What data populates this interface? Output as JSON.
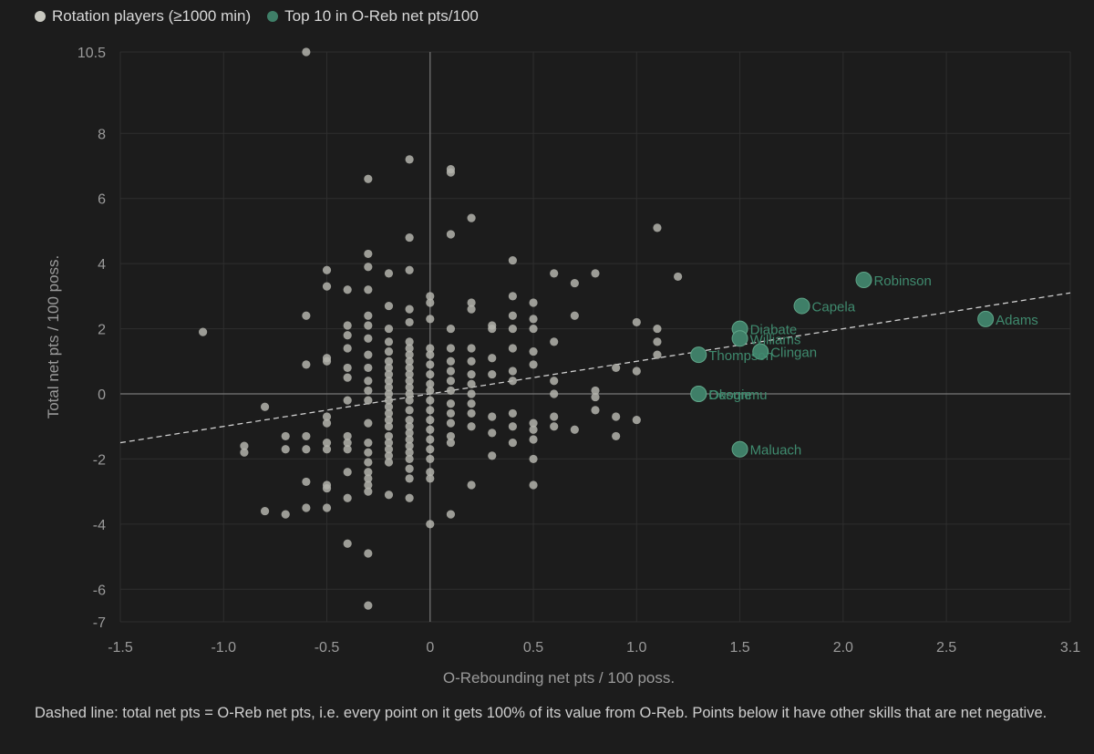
{
  "legend": {
    "rotation_label": "Rotation players (≥1000 min)",
    "top_label": "Top 10 in O-Reb net pts/100"
  },
  "caption": "Dashed line: total net pts = O-Reb net pts, i.e. every point on it gets 100% of its value from O-Reb. Points below it have other skills that are net negative.",
  "colors": {
    "background": "#1c1c1c",
    "rotation": "#b3b3ab",
    "top": "#3f7f68",
    "top_label": "#3f8a6e",
    "grid": "#2e2e2e",
    "axis_zero": "#777777"
  },
  "chart_data": {
    "type": "scatter",
    "xlabel": "O-Rebounding net pts / 100 poss.",
    "ylabel": "Total net pts / 100 poss.",
    "xlim": [
      -1.5,
      3.1
    ],
    "ylim": [
      -7,
      10.5
    ],
    "x_ticks": [
      -1.5,
      -1.0,
      -0.5,
      0,
      0.5,
      1.0,
      1.5,
      2.0,
      2.5,
      3.1
    ],
    "x_tick_labels": [
      "-1.5",
      "-1.0",
      "-0.5",
      "0",
      "0.5",
      "1.0",
      "1.5",
      "2.0",
      "2.5",
      "3.1"
    ],
    "y_ticks": [
      -7,
      -6,
      -4,
      -2,
      0,
      2,
      4,
      6,
      8,
      10.5
    ],
    "y_tick_labels": [
      "-7",
      "-6",
      "-4",
      "-2",
      "0",
      "2",
      "4",
      "6",
      "8",
      "10.5"
    ],
    "grid": true,
    "reference_line": {
      "style": "dashed",
      "from": [
        -1.5,
        -1.5
      ],
      "to": [
        3.1,
        3.1
      ]
    },
    "series": [
      {
        "name": "Rotation players (≥1000 min)",
        "points": [
          [
            -1.1,
            1.9
          ],
          [
            -0.9,
            -1.6
          ],
          [
            -0.9,
            -1.8
          ],
          [
            -0.8,
            -0.4
          ],
          [
            -0.8,
            -3.6
          ],
          [
            -0.7,
            -1.3
          ],
          [
            -0.7,
            -1.7
          ],
          [
            -0.7,
            -3.7
          ],
          [
            -0.6,
            10.5
          ],
          [
            -0.6,
            2.4
          ],
          [
            -0.6,
            0.9
          ],
          [
            -0.6,
            -1.3
          ],
          [
            -0.6,
            -1.7
          ],
          [
            -0.6,
            -2.7
          ],
          [
            -0.6,
            -3.5
          ],
          [
            -0.5,
            3.8
          ],
          [
            -0.5,
            3.3
          ],
          [
            -0.5,
            1.1
          ],
          [
            -0.5,
            1.0
          ],
          [
            -0.5,
            -0.7
          ],
          [
            -0.5,
            -0.9
          ],
          [
            -0.5,
            -1.5
          ],
          [
            -0.5,
            -1.7
          ],
          [
            -0.5,
            -2.8
          ],
          [
            -0.5,
            -2.9
          ],
          [
            -0.5,
            -3.5
          ],
          [
            -0.4,
            3.2
          ],
          [
            -0.4,
            2.1
          ],
          [
            -0.4,
            1.8
          ],
          [
            -0.4,
            1.4
          ],
          [
            -0.4,
            0.8
          ],
          [
            -0.4,
            0.5
          ],
          [
            -0.4,
            -0.2
          ],
          [
            -0.4,
            -1.3
          ],
          [
            -0.4,
            -1.5
          ],
          [
            -0.4,
            -1.7
          ],
          [
            -0.4,
            -2.4
          ],
          [
            -0.4,
            -3.2
          ],
          [
            -0.4,
            -4.6
          ],
          [
            -0.3,
            6.6
          ],
          [
            -0.3,
            4.3
          ],
          [
            -0.3,
            3.9
          ],
          [
            -0.3,
            3.2
          ],
          [
            -0.3,
            2.4
          ],
          [
            -0.3,
            2.1
          ],
          [
            -0.3,
            1.7
          ],
          [
            -0.3,
            1.2
          ],
          [
            -0.3,
            0.8
          ],
          [
            -0.3,
            0.4
          ],
          [
            -0.3,
            0.1
          ],
          [
            -0.3,
            -0.2
          ],
          [
            -0.3,
            -0.9
          ],
          [
            -0.3,
            -1.5
          ],
          [
            -0.3,
            -1.8
          ],
          [
            -0.3,
            -2.1
          ],
          [
            -0.3,
            -2.4
          ],
          [
            -0.3,
            -2.6
          ],
          [
            -0.3,
            -2.8
          ],
          [
            -0.3,
            -3.0
          ],
          [
            -0.3,
            -4.9
          ],
          [
            -0.3,
            -6.5
          ],
          [
            -0.2,
            3.7
          ],
          [
            -0.2,
            2.7
          ],
          [
            -0.2,
            2.0
          ],
          [
            -0.2,
            1.6
          ],
          [
            -0.2,
            1.3
          ],
          [
            -0.2,
            1.0
          ],
          [
            -0.2,
            0.8
          ],
          [
            -0.2,
            0.6
          ],
          [
            -0.2,
            0.4
          ],
          [
            -0.2,
            0.2
          ],
          [
            -0.2,
            0.0
          ],
          [
            -0.2,
            -0.2
          ],
          [
            -0.2,
            -0.4
          ],
          [
            -0.2,
            -0.6
          ],
          [
            -0.2,
            -0.8
          ],
          [
            -0.2,
            -1.0
          ],
          [
            -0.2,
            -1.3
          ],
          [
            -0.2,
            -1.5
          ],
          [
            -0.2,
            -1.7
          ],
          [
            -0.2,
            -1.9
          ],
          [
            -0.2,
            -2.1
          ],
          [
            -0.2,
            -3.1
          ],
          [
            -0.1,
            7.2
          ],
          [
            -0.1,
            4.8
          ],
          [
            -0.1,
            3.8
          ],
          [
            -0.1,
            2.6
          ],
          [
            -0.1,
            2.2
          ],
          [
            -0.1,
            1.6
          ],
          [
            -0.1,
            1.4
          ],
          [
            -0.1,
            1.2
          ],
          [
            -0.1,
            1.0
          ],
          [
            -0.1,
            0.8
          ],
          [
            -0.1,
            0.6
          ],
          [
            -0.1,
            0.4
          ],
          [
            -0.1,
            0.2
          ],
          [
            -0.1,
            0.0
          ],
          [
            -0.1,
            -0.2
          ],
          [
            -0.1,
            -0.5
          ],
          [
            -0.1,
            -0.8
          ],
          [
            -0.1,
            -1.0
          ],
          [
            -0.1,
            -1.2
          ],
          [
            -0.1,
            -1.4
          ],
          [
            -0.1,
            -1.6
          ],
          [
            -0.1,
            -1.8
          ],
          [
            -0.1,
            -2.0
          ],
          [
            -0.1,
            -2.3
          ],
          [
            -0.1,
            -2.6
          ],
          [
            -0.1,
            -3.2
          ],
          [
            0.0,
            3.0
          ],
          [
            0.0,
            2.8
          ],
          [
            0.0,
            2.3
          ],
          [
            0.0,
            1.4
          ],
          [
            0.0,
            1.2
          ],
          [
            0.0,
            0.9
          ],
          [
            0.0,
            0.6
          ],
          [
            0.0,
            0.3
          ],
          [
            0.0,
            0.1
          ],
          [
            0.0,
            -0.2
          ],
          [
            0.0,
            -0.5
          ],
          [
            0.0,
            -0.8
          ],
          [
            0.0,
            -1.1
          ],
          [
            0.0,
            -1.4
          ],
          [
            0.0,
            -1.7
          ],
          [
            0.0,
            -2.0
          ],
          [
            0.0,
            -2.4
          ],
          [
            0.0,
            -2.6
          ],
          [
            0.0,
            -4.0
          ],
          [
            0.1,
            6.9
          ],
          [
            0.1,
            6.8
          ],
          [
            0.1,
            4.9
          ],
          [
            0.1,
            2.0
          ],
          [
            0.1,
            1.4
          ],
          [
            0.1,
            1.0
          ],
          [
            0.1,
            0.7
          ],
          [
            0.1,
            0.4
          ],
          [
            0.1,
            0.1
          ],
          [
            0.1,
            -0.3
          ],
          [
            0.1,
            -0.6
          ],
          [
            0.1,
            -0.9
          ],
          [
            0.1,
            -1.3
          ],
          [
            0.1,
            -1.5
          ],
          [
            0.1,
            -3.7
          ],
          [
            0.2,
            5.4
          ],
          [
            0.2,
            2.8
          ],
          [
            0.2,
            2.6
          ],
          [
            0.2,
            1.4
          ],
          [
            0.2,
            1.0
          ],
          [
            0.2,
            0.6
          ],
          [
            0.2,
            0.3
          ],
          [
            0.2,
            0.0
          ],
          [
            0.2,
            -0.3
          ],
          [
            0.2,
            -0.6
          ],
          [
            0.2,
            -1.0
          ],
          [
            0.2,
            -2.8
          ],
          [
            0.3,
            2.1
          ],
          [
            0.3,
            2.0
          ],
          [
            0.3,
            1.1
          ],
          [
            0.3,
            0.6
          ],
          [
            0.3,
            -0.7
          ],
          [
            0.3,
            -1.2
          ],
          [
            0.3,
            -1.9
          ],
          [
            0.4,
            4.1
          ],
          [
            0.4,
            3.0
          ],
          [
            0.4,
            2.4
          ],
          [
            0.4,
            2.0
          ],
          [
            0.4,
            1.4
          ],
          [
            0.4,
            0.7
          ],
          [
            0.4,
            0.4
          ],
          [
            0.4,
            -0.6
          ],
          [
            0.4,
            -1.0
          ],
          [
            0.4,
            -1.5
          ],
          [
            0.5,
            2.8
          ],
          [
            0.5,
            2.3
          ],
          [
            0.5,
            2.0
          ],
          [
            0.5,
            1.3
          ],
          [
            0.5,
            0.9
          ],
          [
            0.5,
            -0.9
          ],
          [
            0.5,
            -1.1
          ],
          [
            0.5,
            -1.4
          ],
          [
            0.5,
            -2.0
          ],
          [
            0.5,
            -2.8
          ],
          [
            0.6,
            3.7
          ],
          [
            0.6,
            1.6
          ],
          [
            0.6,
            0.4
          ],
          [
            0.6,
            0.0
          ],
          [
            0.6,
            -0.7
          ],
          [
            0.6,
            -1.0
          ],
          [
            0.7,
            3.4
          ],
          [
            0.7,
            2.4
          ],
          [
            0.7,
            -1.1
          ],
          [
            0.8,
            3.7
          ],
          [
            0.8,
            0.1
          ],
          [
            0.8,
            -0.1
          ],
          [
            0.8,
            -0.5
          ],
          [
            0.9,
            0.8
          ],
          [
            0.9,
            -0.7
          ],
          [
            0.9,
            -1.3
          ],
          [
            1.0,
            2.2
          ],
          [
            1.0,
            0.7
          ],
          [
            1.0,
            -0.8
          ],
          [
            1.1,
            5.1
          ],
          [
            1.1,
            2.0
          ],
          [
            1.1,
            1.6
          ],
          [
            1.1,
            1.2
          ],
          [
            1.2,
            3.6
          ]
        ]
      },
      {
        "name": "Top 10 in O-Reb net pts/100",
        "points": [
          {
            "x": 2.1,
            "y": 3.5,
            "label": "Robinson"
          },
          {
            "x": 1.8,
            "y": 2.7,
            "label": "Capela"
          },
          {
            "x": 2.69,
            "y": 2.3,
            "label": "Adams"
          },
          {
            "x": 1.5,
            "y": 2.0,
            "label": "Diabate"
          },
          {
            "x": 1.5,
            "y": 1.7,
            "label": "Williams"
          },
          {
            "x": 1.6,
            "y": 1.3,
            "label": "Clingan"
          },
          {
            "x": 1.3,
            "y": 1.2,
            "label": "Thompson"
          },
          {
            "x": 1.3,
            "y": 0.0,
            "label": "Okogie"
          },
          {
            "x": 1.3,
            "y": 0.0,
            "label": "Dosunmu"
          },
          {
            "x": 1.5,
            "y": -1.7,
            "label": "Maluach"
          }
        ]
      }
    ]
  }
}
